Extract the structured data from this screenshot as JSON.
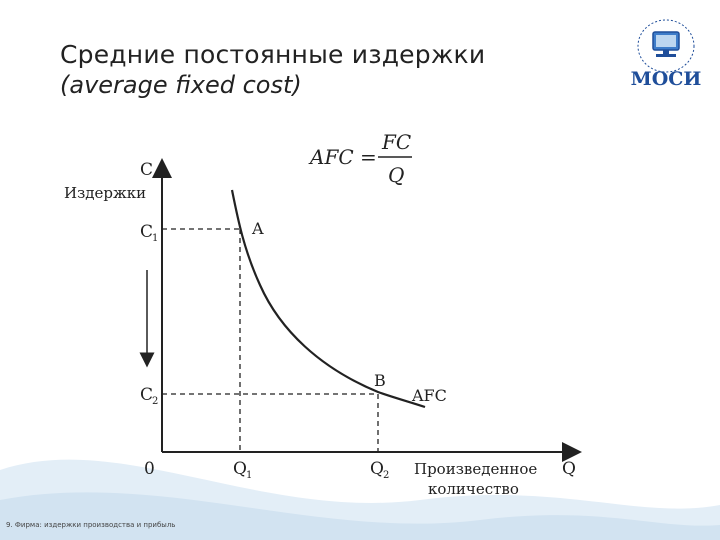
{
  "slide": {
    "title": "Средние постоянные издержки",
    "subtitle": "(average fixed cost)",
    "footer": "9. Фирма: издержки производства и прибыль"
  },
  "logo": {
    "text": "МОСИ",
    "icon": "computer-globe-icon"
  },
  "formula": {
    "lhs": "AFC =",
    "numerator": "FC",
    "denominator": "Q"
  },
  "diagram": {
    "y_axis_letter": "C",
    "y_axis_label": "Издержки",
    "c1_label": "C",
    "c1_sub": "1",
    "c2_label": "C",
    "c2_sub": "2",
    "origin_label": "0",
    "q1_label": "Q",
    "q1_sub": "1",
    "q2_label": "Q",
    "q2_sub": "2",
    "x_axis_line1": "Произведенное",
    "x_axis_line2": "количество",
    "x_axis_letter": "Q",
    "point_a": "A",
    "point_b": "B",
    "curve_label": "AFC"
  },
  "colors": {
    "accent": "#1f4e9a",
    "wave": "#d7e6f2",
    "axis": "#222222"
  }
}
